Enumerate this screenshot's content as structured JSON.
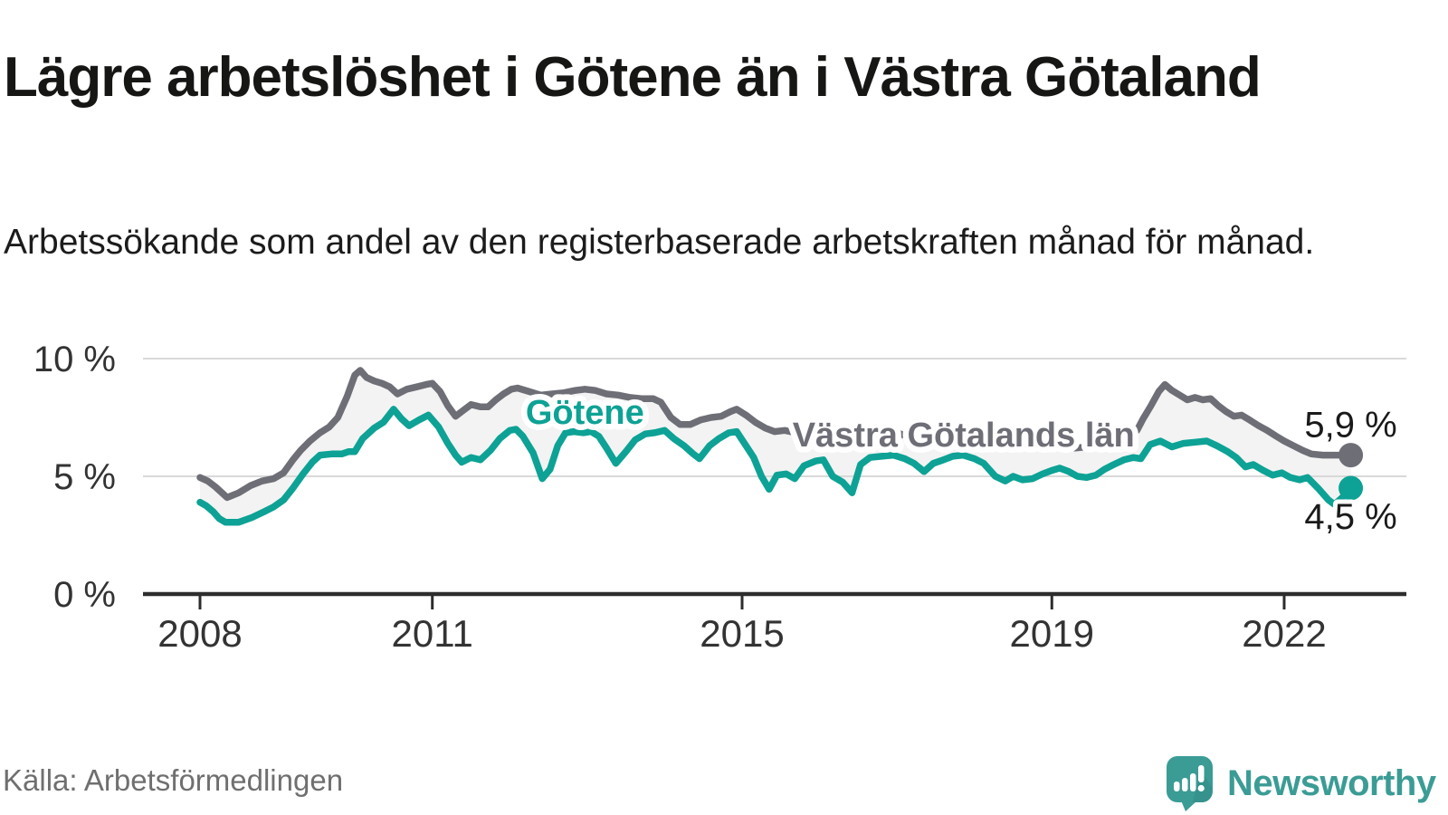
{
  "title": "Lägre arbetslöshet i Götene än i Västra Götaland",
  "subtitle": "Arbetssökande som andel av den registerbaserade arbetskraften månad för månad.",
  "source": "Källa: Arbetsförmedlingen",
  "brand": {
    "name": "Newsworthy",
    "color": "#3b9c95"
  },
  "colors": {
    "goetene_teal": "#0da295",
    "county_gray": "#6e6e77",
    "band_fill": "#f3f3f3",
    "gridline": "#d9d9d9",
    "axis": "#2d2d2d",
    "tick_text": "#333333",
    "end_label_text": "#1a1a1a",
    "halo": "#ffffff"
  },
  "chart_data": {
    "type": "line",
    "title": "Lägre arbetslöshet i Götene än i Västra Götaland",
    "xlabel": "",
    "ylabel": "Arbetssökande som andel av den registerbaserade arbetskraften",
    "x_axis": {
      "ticks": [
        2008,
        2011,
        2015,
        2019,
        2022
      ],
      "tick_labels": [
        "2008",
        "2011",
        "2015",
        "2019",
        "2022"
      ],
      "range": [
        2007.27,
        2023.6
      ]
    },
    "y_axis": {
      "ticks": [
        0,
        5,
        10
      ],
      "tick_labels": [
        "0 %",
        "5 %",
        "10 %"
      ],
      "gridlines": [
        5,
        10
      ],
      "range": [
        0,
        10.6
      ]
    },
    "legend_position": "inline-labels",
    "grid": true,
    "annotations": [
      {
        "text": "Götene",
        "t": 2012.97,
        "value": 7.73,
        "series": "Götene"
      },
      {
        "text": "Västra Götalands län",
        "t": 2017.86,
        "value": 6.77,
        "series": "Västra Götalands län"
      }
    ],
    "series": [
      {
        "name": "Västra Götalands län",
        "color": "#6e6e77",
        "end_value": 5.9,
        "end_label": "5,9 %",
        "points": [
          [
            2008.0,
            4.95
          ],
          [
            2008.1,
            4.8
          ],
          [
            2008.2,
            4.55
          ],
          [
            2008.35,
            4.1
          ],
          [
            2008.5,
            4.3
          ],
          [
            2008.65,
            4.6
          ],
          [
            2008.8,
            4.8
          ],
          [
            2008.95,
            4.9
          ],
          [
            2009.08,
            5.15
          ],
          [
            2009.2,
            5.7
          ],
          [
            2009.3,
            6.1
          ],
          [
            2009.42,
            6.5
          ],
          [
            2009.55,
            6.85
          ],
          [
            2009.67,
            7.1
          ],
          [
            2009.78,
            7.5
          ],
          [
            2009.9,
            8.4
          ],
          [
            2010.0,
            9.3
          ],
          [
            2010.07,
            9.5
          ],
          [
            2010.15,
            9.2
          ],
          [
            2010.25,
            9.05
          ],
          [
            2010.35,
            8.95
          ],
          [
            2010.45,
            8.8
          ],
          [
            2010.55,
            8.5
          ],
          [
            2010.67,
            8.7
          ],
          [
            2010.8,
            8.8
          ],
          [
            2010.92,
            8.9
          ],
          [
            2011.0,
            8.95
          ],
          [
            2011.1,
            8.6
          ],
          [
            2011.2,
            8.0
          ],
          [
            2011.3,
            7.55
          ],
          [
            2011.4,
            7.8
          ],
          [
            2011.5,
            8.05
          ],
          [
            2011.62,
            7.95
          ],
          [
            2011.72,
            7.95
          ],
          [
            2011.82,
            8.25
          ],
          [
            2011.92,
            8.5
          ],
          [
            2012.02,
            8.7
          ],
          [
            2012.1,
            8.75
          ],
          [
            2012.25,
            8.6
          ],
          [
            2012.4,
            8.45
          ],
          [
            2012.55,
            8.5
          ],
          [
            2012.7,
            8.55
          ],
          [
            2012.85,
            8.65
          ],
          [
            2012.97,
            8.7
          ],
          [
            2013.1,
            8.65
          ],
          [
            2013.25,
            8.5
          ],
          [
            2013.4,
            8.45
          ],
          [
            2013.55,
            8.35
          ],
          [
            2013.7,
            8.3
          ],
          [
            2013.85,
            8.3
          ],
          [
            2013.95,
            8.15
          ],
          [
            2014.08,
            7.5
          ],
          [
            2014.2,
            7.2
          ],
          [
            2014.33,
            7.2
          ],
          [
            2014.47,
            7.4
          ],
          [
            2014.6,
            7.5
          ],
          [
            2014.73,
            7.55
          ],
          [
            2014.85,
            7.75
          ],
          [
            2014.93,
            7.85
          ],
          [
            2015.05,
            7.6
          ],
          [
            2015.17,
            7.3
          ],
          [
            2015.3,
            7.05
          ],
          [
            2015.42,
            6.9
          ],
          [
            2015.55,
            6.95
          ],
          [
            2015.7,
            6.85
          ],
          [
            2015.85,
            7.0
          ],
          [
            2016.0,
            7.05
          ],
          [
            2016.15,
            6.85
          ],
          [
            2016.3,
            6.7
          ],
          [
            2016.45,
            6.6
          ],
          [
            2016.6,
            6.75
          ],
          [
            2016.75,
            6.8
          ],
          [
            2016.9,
            6.85
          ],
          [
            2017.05,
            6.8
          ],
          [
            2017.2,
            6.6
          ],
          [
            2017.35,
            6.5
          ],
          [
            2017.5,
            6.55
          ],
          [
            2017.65,
            6.6
          ],
          [
            2017.8,
            6.65
          ],
          [
            2017.95,
            6.7
          ],
          [
            2018.1,
            6.55
          ],
          [
            2018.25,
            6.3
          ],
          [
            2018.4,
            6.2
          ],
          [
            2018.55,
            6.2
          ],
          [
            2018.7,
            6.25
          ],
          [
            2018.85,
            6.3
          ],
          [
            2019.0,
            6.4
          ],
          [
            2019.15,
            6.35
          ],
          [
            2019.3,
            6.2
          ],
          [
            2019.45,
            6.25
          ],
          [
            2019.6,
            6.3
          ],
          [
            2019.75,
            6.45
          ],
          [
            2019.9,
            6.6
          ],
          [
            2020.02,
            6.75
          ],
          [
            2020.1,
            6.95
          ],
          [
            2020.18,
            7.45
          ],
          [
            2020.28,
            8.0
          ],
          [
            2020.38,
            8.6
          ],
          [
            2020.46,
            8.9
          ],
          [
            2020.55,
            8.65
          ],
          [
            2020.65,
            8.45
          ],
          [
            2020.75,
            8.25
          ],
          [
            2020.85,
            8.35
          ],
          [
            2020.95,
            8.25
          ],
          [
            2021.05,
            8.3
          ],
          [
            2021.15,
            8.0
          ],
          [
            2021.25,
            7.75
          ],
          [
            2021.35,
            7.55
          ],
          [
            2021.45,
            7.6
          ],
          [
            2021.55,
            7.4
          ],
          [
            2021.67,
            7.15
          ],
          [
            2021.78,
            6.95
          ],
          [
            2021.9,
            6.7
          ],
          [
            2022.0,
            6.5
          ],
          [
            2022.12,
            6.3
          ],
          [
            2022.24,
            6.1
          ],
          [
            2022.35,
            5.95
          ],
          [
            2022.5,
            5.9
          ],
          [
            2022.65,
            5.9
          ],
          [
            2022.86,
            5.9
          ]
        ]
      },
      {
        "name": "Götene",
        "color": "#0da295",
        "end_value": 4.5,
        "end_label": "4,5 %",
        "points": [
          [
            2008.0,
            3.9
          ],
          [
            2008.08,
            3.75
          ],
          [
            2008.17,
            3.5
          ],
          [
            2008.25,
            3.2
          ],
          [
            2008.33,
            3.05
          ],
          [
            2008.5,
            3.05
          ],
          [
            2008.67,
            3.25
          ],
          [
            2008.83,
            3.5
          ],
          [
            2008.95,
            3.7
          ],
          [
            2009.08,
            4.0
          ],
          [
            2009.2,
            4.5
          ],
          [
            2009.33,
            5.1
          ],
          [
            2009.45,
            5.6
          ],
          [
            2009.55,
            5.9
          ],
          [
            2009.7,
            5.95
          ],
          [
            2009.83,
            5.95
          ],
          [
            2009.92,
            6.05
          ],
          [
            2010.0,
            6.05
          ],
          [
            2010.1,
            6.6
          ],
          [
            2010.25,
            7.05
          ],
          [
            2010.37,
            7.3
          ],
          [
            2010.5,
            7.85
          ],
          [
            2010.6,
            7.45
          ],
          [
            2010.7,
            7.15
          ],
          [
            2010.83,
            7.4
          ],
          [
            2010.95,
            7.6
          ],
          [
            2011.08,
            7.1
          ],
          [
            2011.2,
            6.4
          ],
          [
            2011.3,
            5.9
          ],
          [
            2011.38,
            5.6
          ],
          [
            2011.5,
            5.8
          ],
          [
            2011.62,
            5.7
          ],
          [
            2011.75,
            6.1
          ],
          [
            2011.87,
            6.6
          ],
          [
            2012.0,
            6.95
          ],
          [
            2012.08,
            7.0
          ],
          [
            2012.17,
            6.7
          ],
          [
            2012.3,
            6.0
          ],
          [
            2012.42,
            4.9
          ],
          [
            2012.52,
            5.3
          ],
          [
            2012.62,
            6.3
          ],
          [
            2012.72,
            6.85
          ],
          [
            2012.83,
            6.9
          ],
          [
            2012.95,
            6.85
          ],
          [
            2013.05,
            6.9
          ],
          [
            2013.15,
            6.7
          ],
          [
            2013.25,
            6.2
          ],
          [
            2013.37,
            5.55
          ],
          [
            2013.5,
            6.05
          ],
          [
            2013.62,
            6.55
          ],
          [
            2013.75,
            6.8
          ],
          [
            2013.87,
            6.85
          ],
          [
            2014.0,
            6.95
          ],
          [
            2014.12,
            6.6
          ],
          [
            2014.25,
            6.3
          ],
          [
            2014.37,
            5.95
          ],
          [
            2014.45,
            5.75
          ],
          [
            2014.58,
            6.3
          ],
          [
            2014.7,
            6.6
          ],
          [
            2014.83,
            6.85
          ],
          [
            2014.93,
            6.9
          ],
          [
            2015.05,
            6.3
          ],
          [
            2015.15,
            5.8
          ],
          [
            2015.25,
            5.0
          ],
          [
            2015.35,
            4.45
          ],
          [
            2015.45,
            5.05
          ],
          [
            2015.57,
            5.1
          ],
          [
            2015.68,
            4.9
          ],
          [
            2015.8,
            5.45
          ],
          [
            2015.95,
            5.65
          ],
          [
            2016.05,
            5.7
          ],
          [
            2016.17,
            5.0
          ],
          [
            2016.3,
            4.75
          ],
          [
            2016.42,
            4.3
          ],
          [
            2016.53,
            5.5
          ],
          [
            2016.65,
            5.8
          ],
          [
            2016.8,
            5.85
          ],
          [
            2016.95,
            5.9
          ],
          [
            2017.1,
            5.75
          ],
          [
            2017.22,
            5.55
          ],
          [
            2017.35,
            5.2
          ],
          [
            2017.47,
            5.55
          ],
          [
            2017.6,
            5.7
          ],
          [
            2017.72,
            5.85
          ],
          [
            2017.85,
            5.9
          ],
          [
            2018.0,
            5.75
          ],
          [
            2018.12,
            5.55
          ],
          [
            2018.27,
            5.0
          ],
          [
            2018.4,
            4.8
          ],
          [
            2018.5,
            5.0
          ],
          [
            2018.62,
            4.85
          ],
          [
            2018.75,
            4.9
          ],
          [
            2018.88,
            5.1
          ],
          [
            2019.0,
            5.25
          ],
          [
            2019.1,
            5.35
          ],
          [
            2019.22,
            5.2
          ],
          [
            2019.33,
            5.0
          ],
          [
            2019.45,
            4.95
          ],
          [
            2019.57,
            5.05
          ],
          [
            2019.68,
            5.3
          ],
          [
            2019.8,
            5.5
          ],
          [
            2019.93,
            5.7
          ],
          [
            2020.05,
            5.8
          ],
          [
            2020.15,
            5.75
          ],
          [
            2020.27,
            6.35
          ],
          [
            2020.4,
            6.5
          ],
          [
            2020.55,
            6.25
          ],
          [
            2020.7,
            6.4
          ],
          [
            2020.85,
            6.45
          ],
          [
            2021.0,
            6.5
          ],
          [
            2021.13,
            6.3
          ],
          [
            2021.27,
            6.05
          ],
          [
            2021.38,
            5.8
          ],
          [
            2021.5,
            5.4
          ],
          [
            2021.6,
            5.5
          ],
          [
            2021.73,
            5.25
          ],
          [
            2021.85,
            5.05
          ],
          [
            2021.97,
            5.15
          ],
          [
            2022.08,
            4.95
          ],
          [
            2022.2,
            4.85
          ],
          [
            2022.3,
            4.95
          ],
          [
            2022.45,
            4.45
          ],
          [
            2022.57,
            4.0
          ],
          [
            2022.65,
            3.8
          ],
          [
            2022.75,
            4.1
          ],
          [
            2022.86,
            4.5
          ]
        ]
      }
    ]
  }
}
